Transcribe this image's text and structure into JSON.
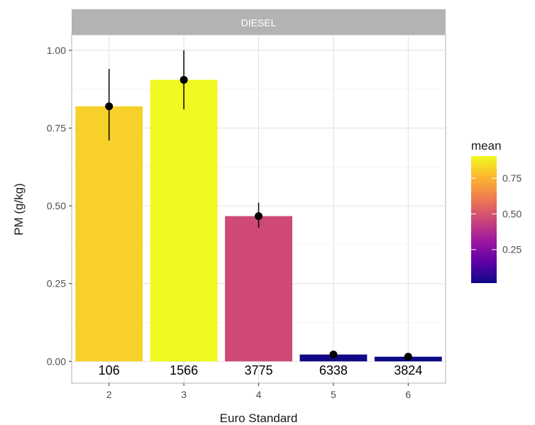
{
  "chart_data": {
    "type": "bar",
    "facet_label": "DIESEL",
    "categories": [
      "2",
      "3",
      "4",
      "5",
      "6"
    ],
    "values": [
      0.82,
      0.905,
      0.467,
      0.022,
      0.015
    ],
    "error_bars": [
      {
        "low": 0.71,
        "high": 0.94
      },
      {
        "low": 0.81,
        "high": 1.0
      },
      {
        "low": 0.43,
        "high": 0.51
      },
      {
        "low": 0.015,
        "high": 0.03
      },
      {
        "low": 0.009,
        "high": 0.021
      }
    ],
    "counts": [
      "106",
      "1566",
      "3775",
      "6338",
      "3824"
    ],
    "xlabel": "Euro Standard",
    "ylabel": "PM (g/kg)",
    "ylim": [
      -0.07,
      1.05
    ],
    "yticks": [
      "0.00",
      "0.25",
      "0.50",
      "0.75",
      "1.00"
    ],
    "ytick_values": [
      0,
      0.25,
      0.5,
      0.75,
      1.0
    ],
    "grid": true,
    "legend": {
      "title": "mean",
      "position": "right",
      "range": [
        0.015,
        0.905
      ],
      "ticks": [
        "0.25",
        "0.50",
        "0.75"
      ],
      "tick_values": [
        0.25,
        0.5,
        0.75
      ]
    },
    "colors": {
      "colormap_stops": [
        "#0d0887",
        "#5c01a6",
        "#9c179e",
        "#cc4778",
        "#ed7953",
        "#fdb42f",
        "#f0f921"
      ],
      "strip_background": "#b3b3b3",
      "grid": "#e0e0e0",
      "point": "#000000"
    }
  }
}
